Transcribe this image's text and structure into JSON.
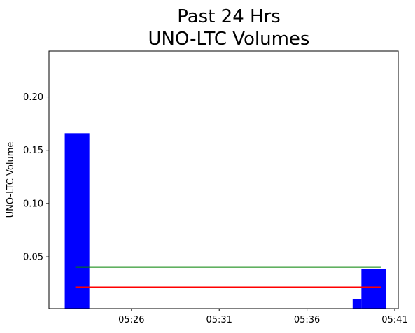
{
  "chart_data": {
    "type": "bar",
    "title_lines": [
      "Past 24 Hrs",
      "UNO-LTC Volumes"
    ],
    "xlabel": "",
    "ylabel": "UNO-LTC Volume",
    "x_unit": "minutes after 05:00",
    "xlim": [
      21.3,
      41.2
    ],
    "ylim": [
      0.0015,
      0.243
    ],
    "x_ticks": [
      {
        "value": 26,
        "label": "05:26"
      },
      {
        "value": 31,
        "label": "05:31"
      },
      {
        "value": 36,
        "label": "05:36"
      },
      {
        "value": 41,
        "label": "05:41"
      }
    ],
    "y_ticks": [
      {
        "value": 0.05,
        "label": "0.05"
      },
      {
        "value": 0.1,
        "label": "0.10"
      },
      {
        "value": 0.15,
        "label": "0.15"
      },
      {
        "value": 0.2,
        "label": "0.20"
      }
    ],
    "bars": [
      {
        "x_start": 22.2,
        "x_end": 23.6,
        "value": 0.166
      },
      {
        "x_start": 38.6,
        "x_end": 39.1,
        "value": 0.0105
      },
      {
        "x_start": 39.1,
        "x_end": 40.5,
        "value": 0.0385
      }
    ],
    "bar_color": "#0000ff",
    "lines": [
      {
        "color": "#008000",
        "x_start": 22.8,
        "x_end": 40.2,
        "y": 0.0405
      },
      {
        "color": "#ff0000",
        "x_start": 22.8,
        "x_end": 40.2,
        "y": 0.0215
      }
    ],
    "grid": false,
    "legend": "none"
  }
}
